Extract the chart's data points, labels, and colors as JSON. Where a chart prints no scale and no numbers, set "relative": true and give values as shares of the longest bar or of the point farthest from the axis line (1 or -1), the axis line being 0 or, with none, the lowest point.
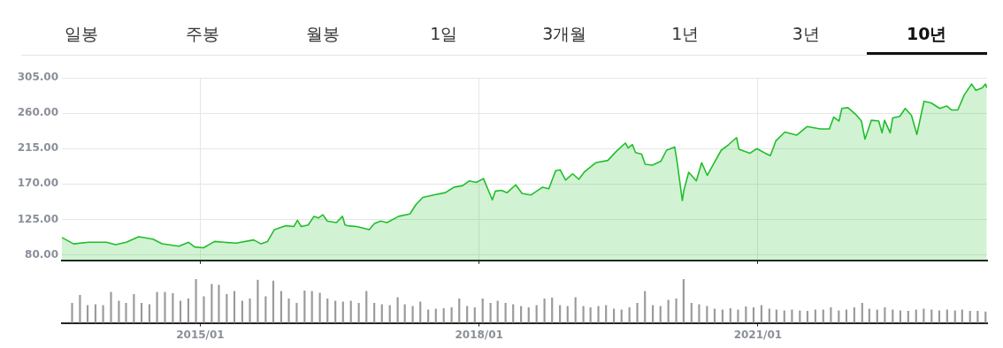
{
  "chart_data": [
    {
      "type": "area",
      "annotations": [
        "일봉",
        "주봉",
        "월봉",
        "1일",
        "3개월",
        "1년",
        "3년",
        "10년"
      ],
      "color": "#1fbf2a",
      "marker": "none",
      "grid": true,
      "tick_labels": "y",
      "xlim": [
        "2013-07-06",
        "2023-06-21"
      ],
      "xticks": [
        {
          "value": "2015-01-01",
          "label": null
        },
        {
          "value": "2018-01-01",
          "label": null
        },
        {
          "value": "2021-01-01",
          "label": null
        }
      ],
      "ylim": [
        73,
        305
      ],
      "yticks": [
        {
          "value": 80,
          "label": "80.00"
        },
        {
          "value": 125,
          "label": "125.00"
        },
        {
          "value": 170,
          "label": "170.00"
        },
        {
          "value": 215,
          "label": "215.00"
        },
        {
          "value": 260,
          "label": "260.00"
        },
        {
          "value": 305,
          "label": "305.00"
        }
      ],
      "x": [
        "2013-07-06",
        "2013-08-21",
        "2013-10-19",
        "2013-12-28",
        "2014-02-02",
        "2014-03-16",
        "2014-05-04",
        "2014-06-29",
        "2014-08-04",
        "2014-10-09",
        "2014-11-16",
        "2014-12-10",
        "2015-01-14",
        "2015-02-26",
        "2015-04-04",
        "2015-05-22",
        "2015-07-30",
        "2015-08-28",
        "2015-09-22",
        "2015-10-19",
        "2015-12-04",
        "2016-01-04",
        "2016-01-18",
        "2016-02-02",
        "2016-02-29",
        "2016-03-23",
        "2016-04-10",
        "2016-04-27",
        "2016-05-14",
        "2016-06-19",
        "2016-07-13",
        "2016-07-23",
        "2016-08-03",
        "2016-09-08",
        "2016-10-26",
        "2016-11-16",
        "2016-12-10",
        "2017-01-04",
        "2017-02-19",
        "2017-04-04",
        "2017-04-28",
        "2017-05-25",
        "2017-07-06",
        "2017-08-21",
        "2017-09-25",
        "2017-10-29",
        "2017-11-23",
        "2017-12-21",
        "2018-01-18",
        "2018-02-09",
        "2018-02-22",
        "2018-03-06",
        "2018-03-30",
        "2018-04-21",
        "2018-05-25",
        "2018-06-19",
        "2018-07-23",
        "2018-09-08",
        "2018-10-02",
        "2018-10-29",
        "2018-11-16",
        "2018-12-07",
        "2019-01-04",
        "2019-01-28",
        "2019-02-18",
        "2019-04-04",
        "2019-05-22",
        "2019-06-26",
        "2019-07-30",
        "2019-08-10",
        "2019-08-27",
        "2019-09-08",
        "2019-10-02",
        "2019-10-16",
        "2019-11-13",
        "2019-12-17",
        "2020-01-08",
        "2020-02-09",
        "2020-02-19",
        "2020-03-10",
        "2020-03-16",
        "2020-04-04",
        "2020-05-04",
        "2020-05-25",
        "2020-06-16",
        "2020-07-13",
        "2020-08-10",
        "2020-09-08",
        "2020-10-09",
        "2020-10-19",
        "2020-11-30",
        "2020-12-28",
        "2021-01-25",
        "2021-02-19",
        "2021-03-13",
        "2021-04-17",
        "2021-06-02",
        "2021-07-13",
        "2021-09-04",
        "2021-10-09",
        "2021-10-26",
        "2021-11-16",
        "2021-11-27",
        "2021-12-21",
        "2022-01-22",
        "2022-02-12",
        "2022-02-26",
        "2022-03-23",
        "2022-04-21",
        "2022-05-04",
        "2022-05-14",
        "2022-06-05",
        "2022-06-15",
        "2022-07-13",
        "2022-08-03",
        "2022-08-28",
        "2022-09-18",
        "2022-10-16",
        "2022-11-13",
        "2022-12-17",
        "2023-01-14",
        "2023-02-02",
        "2023-02-26",
        "2023-03-23",
        "2023-04-21",
        "2023-05-08",
        "2023-06-02",
        "2023-06-15",
        "2023-06-20"
      ],
      "values": [
        102,
        94,
        96,
        96,
        93,
        96,
        103,
        100,
        94,
        91,
        96,
        90,
        89,
        97,
        96,
        95,
        99,
        94,
        97,
        112,
        117,
        116,
        124,
        116,
        118,
        129,
        127,
        131,
        123,
        121,
        129,
        118,
        117,
        116,
        112,
        120,
        123,
        121,
        129,
        132,
        144,
        153,
        156,
        159,
        166,
        168,
        174,
        172,
        177,
        160,
        150,
        161,
        162,
        159,
        169,
        158,
        156,
        166,
        164,
        187,
        188,
        175,
        183,
        176,
        185,
        197,
        200,
        212,
        222,
        216,
        220,
        210,
        208,
        195,
        194,
        199,
        213,
        217,
        197,
        149,
        162,
        185,
        174,
        197,
        181,
        197,
        213,
        220,
        229,
        214,
        209,
        215,
        210,
        206,
        225,
        236,
        232,
        243,
        240,
        240,
        255,
        250,
        266,
        267,
        258,
        250,
        227,
        251,
        250,
        235,
        251,
        235,
        254,
        256,
        266,
        257,
        233,
        275,
        273,
        266,
        269,
        264,
        264,
        283,
        297,
        289,
        292,
        297,
        292
      ]
    },
    {
      "type": "bar",
      "relative": true,
      "color": "#9a9a9a",
      "tick_labels": "x",
      "xlim": [
        "2013-07-06",
        "2023-06-21"
      ],
      "xticks": [
        {
          "value": "2015-01-01",
          "label": "2015/01"
        },
        {
          "value": "2018-01-01",
          "label": "2018/01"
        },
        {
          "value": "2021-01-01",
          "label": "2021/01"
        }
      ],
      "x": [
        "2013-08",
        "2013-09",
        "2013-10",
        "2013-11",
        "2013-12",
        "2014-01",
        "2014-02",
        "2014-03",
        "2014-04",
        "2014-05",
        "2014-06",
        "2014-07",
        "2014-08",
        "2014-09",
        "2014-10",
        "2014-11",
        "2014-12",
        "2015-01",
        "2015-02",
        "2015-03",
        "2015-04",
        "2015-05",
        "2015-06",
        "2015-07",
        "2015-08",
        "2015-09",
        "2015-10",
        "2015-11",
        "2015-12",
        "2016-01",
        "2016-02",
        "2016-03",
        "2016-04",
        "2016-05",
        "2016-06",
        "2016-07",
        "2016-08",
        "2016-09",
        "2016-10",
        "2016-11",
        "2016-12",
        "2017-01",
        "2017-02",
        "2017-03",
        "2017-04",
        "2017-05",
        "2017-06",
        "2017-07",
        "2017-08",
        "2017-09",
        "2017-10",
        "2017-11",
        "2017-12",
        "2018-01",
        "2018-02",
        "2018-03",
        "2018-04",
        "2018-05",
        "2018-06",
        "2018-07",
        "2018-08",
        "2018-09",
        "2018-10",
        "2018-11",
        "2018-12",
        "2019-01",
        "2019-02",
        "2019-03",
        "2019-04",
        "2019-05",
        "2019-06",
        "2019-07",
        "2019-08",
        "2019-09",
        "2019-10",
        "2019-11",
        "2019-12",
        "2020-01",
        "2020-02",
        "2020-03",
        "2020-04",
        "2020-05",
        "2020-06",
        "2020-07",
        "2020-08",
        "2020-09",
        "2020-10",
        "2020-11",
        "2020-12",
        "2021-01",
        "2021-02",
        "2021-03",
        "2021-04",
        "2021-05",
        "2021-06",
        "2021-07",
        "2021-08",
        "2021-09",
        "2021-10",
        "2021-11",
        "2021-12",
        "2022-01",
        "2022-02",
        "2022-03",
        "2022-04",
        "2022-05",
        "2022-06",
        "2022-07",
        "2022-08",
        "2022-09",
        "2022-10",
        "2022-11",
        "2022-12",
        "2023-01",
        "2023-02",
        "2023-03",
        "2023-04",
        "2023-05",
        "2023-06"
      ],
      "values": [
        0.45,
        0.63,
        0.4,
        0.42,
        0.4,
        0.7,
        0.5,
        0.45,
        0.65,
        0.45,
        0.42,
        0.7,
        0.7,
        0.67,
        0.5,
        0.55,
        1,
        0.6,
        0.88,
        0.86,
        0.65,
        0.72,
        0.5,
        0.55,
        0.98,
        0.6,
        0.96,
        0.72,
        0.55,
        0.45,
        0.73,
        0.72,
        0.68,
        0.55,
        0.5,
        0.48,
        0.5,
        0.45,
        0.72,
        0.45,
        0.42,
        0.4,
        0.58,
        0.42,
        0.38,
        0.48,
        0.3,
        0.32,
        0.33,
        0.35,
        0.55,
        0.38,
        0.35,
        0.55,
        0.45,
        0.5,
        0.45,
        0.42,
        0.38,
        0.35,
        0.4,
        0.55,
        0.57,
        0.4,
        0.38,
        0.58,
        0.38,
        0.35,
        0.38,
        0.4,
        0.32,
        0.3,
        0.35,
        0.45,
        0.72,
        0.4,
        0.38,
        0.52,
        0.55,
        1,
        0.45,
        0.42,
        0.38,
        0.32,
        0.3,
        0.33,
        0.3,
        0.37,
        0.35,
        0.4,
        0.32,
        0.3,
        0.28,
        0.3,
        0.28,
        0.27,
        0.3,
        0.3,
        0.35,
        0.28,
        0.3,
        0.35,
        0.45,
        0.32,
        0.3,
        0.35,
        0.3,
        0.28,
        0.27,
        0.3,
        0.32,
        0.3,
        0.28,
        0.3,
        0.28,
        0.3,
        0.27,
        0.27,
        0.25
      ]
    }
  ]
}
